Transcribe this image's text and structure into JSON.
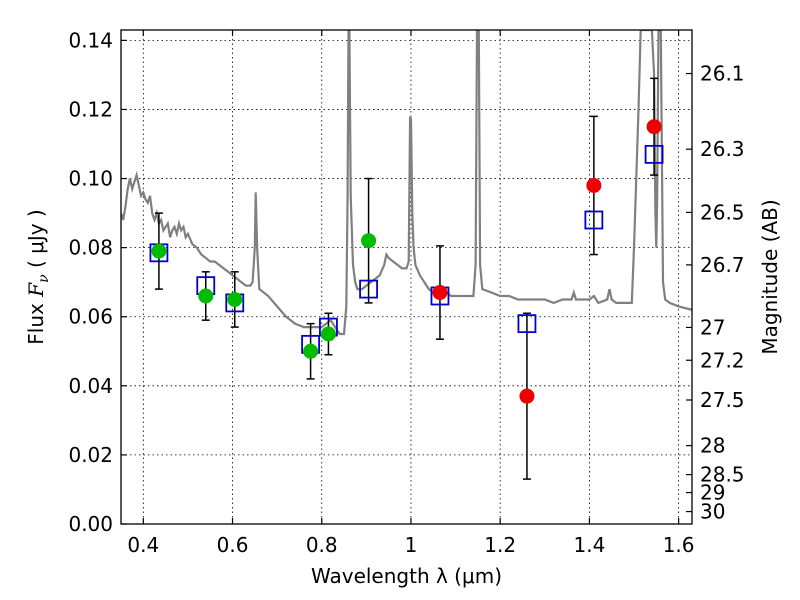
{
  "chart_data": {
    "type": "scatter",
    "title": "",
    "xlabel": "Wavelength  λ (μm)",
    "ylabel": "Flux  F_ν  ( μJy )",
    "ylabel_parts": {
      "lead": "Flux  ",
      "symbol": "F",
      "sub": "ν",
      "tail": "  ( μJy )"
    },
    "ylabel_right": "Magnitude (AB)",
    "xlim": [
      0.35,
      1.63
    ],
    "ylim": [
      0.0,
      0.143
    ],
    "grid": true,
    "x_ticks": [
      0.4,
      0.6,
      0.8,
      1.0,
      1.2,
      1.4,
      1.6
    ],
    "x_tick_labels": [
      "0.4",
      "0.6",
      "0.8",
      "1",
      "1.2",
      "1.4",
      "1.6"
    ],
    "y_ticks": [
      0.0,
      0.02,
      0.04,
      0.06,
      0.08,
      0.1,
      0.12,
      0.14
    ],
    "y_tick_labels": [
      "0.00",
      "0.02",
      "0.04",
      "0.06",
      "0.08",
      "0.10",
      "0.12",
      "0.14"
    ],
    "right_ticks": [
      {
        "label": "26.1",
        "flux": 0.1304
      },
      {
        "label": "26.3",
        "flux": 0.1085
      },
      {
        "label": "26.5",
        "flux": 0.0902
      },
      {
        "label": "26.7",
        "flux": 0.075
      },
      {
        "label": "27",
        "flux": 0.0569
      },
      {
        "label": "27.2",
        "flux": 0.0474
      },
      {
        "label": "27.5",
        "flux": 0.0359
      },
      {
        "label": "28",
        "flux": 0.0227
      },
      {
        "label": "28.5",
        "flux": 0.0143
      },
      {
        "label": "29",
        "flux": 0.0091
      },
      {
        "label": "30",
        "flux": 0.0036
      }
    ],
    "series": [
      {
        "name": "model spectrum",
        "kind": "line",
        "color": "#808080",
        "points": [
          [
            0.35,
            0.09
          ],
          [
            0.355,
            0.088
          ],
          [
            0.36,
            0.092
          ],
          [
            0.365,
            0.097
          ],
          [
            0.37,
            0.1
          ],
          [
            0.375,
            0.097
          ],
          [
            0.38,
            0.099
          ],
          [
            0.385,
            0.101
          ],
          [
            0.39,
            0.098
          ],
          [
            0.395,
            0.095
          ],
          [
            0.4,
            0.096
          ],
          [
            0.405,
            0.094
          ],
          [
            0.41,
            0.093
          ],
          [
            0.415,
            0.095
          ],
          [
            0.42,
            0.09
          ],
          [
            0.425,
            0.088
          ],
          [
            0.43,
            0.09
          ],
          [
            0.435,
            0.087
          ],
          [
            0.44,
            0.088
          ],
          [
            0.445,
            0.085
          ],
          [
            0.45,
            0.086
          ],
          [
            0.455,
            0.087
          ],
          [
            0.46,
            0.083
          ],
          [
            0.465,
            0.085
          ],
          [
            0.47,
            0.086
          ],
          [
            0.475,
            0.084
          ],
          [
            0.48,
            0.087
          ],
          [
            0.485,
            0.085
          ],
          [
            0.49,
            0.086
          ],
          [
            0.495,
            0.083
          ],
          [
            0.5,
            0.084
          ],
          [
            0.51,
            0.081
          ],
          [
            0.52,
            0.08
          ],
          [
            0.53,
            0.078
          ],
          [
            0.54,
            0.077
          ],
          [
            0.55,
            0.076
          ],
          [
            0.56,
            0.076
          ],
          [
            0.57,
            0.075
          ],
          [
            0.58,
            0.074
          ],
          [
            0.59,
            0.073
          ],
          [
            0.6,
            0.072
          ],
          [
            0.61,
            0.071
          ],
          [
            0.62,
            0.07
          ],
          [
            0.63,
            0.069
          ],
          [
            0.64,
            0.069
          ],
          [
            0.645,
            0.07
          ],
          [
            0.65,
            0.08
          ],
          [
            0.652,
            0.096
          ],
          [
            0.655,
            0.08
          ],
          [
            0.66,
            0.068
          ],
          [
            0.68,
            0.066
          ],
          [
            0.7,
            0.063
          ],
          [
            0.72,
            0.06
          ],
          [
            0.74,
            0.058
          ],
          [
            0.76,
            0.057
          ],
          [
            0.78,
            0.057
          ],
          [
            0.8,
            0.057
          ],
          [
            0.81,
            0.058
          ],
          [
            0.82,
            0.059
          ],
          [
            0.83,
            0.057
          ],
          [
            0.84,
            0.055
          ],
          [
            0.85,
            0.055
          ],
          [
            0.855,
            0.063
          ],
          [
            0.858,
            0.095
          ],
          [
            0.86,
            0.143
          ],
          [
            0.862,
            0.143
          ],
          [
            0.865,
            0.095
          ],
          [
            0.87,
            0.075
          ],
          [
            0.875,
            0.07
          ],
          [
            0.88,
            0.068
          ],
          [
            0.89,
            0.068
          ],
          [
            0.9,
            0.069
          ],
          [
            0.91,
            0.07
          ],
          [
            0.92,
            0.071
          ],
          [
            0.93,
            0.072
          ],
          [
            0.94,
            0.075
          ],
          [
            0.945,
            0.078
          ],
          [
            0.95,
            0.077
          ],
          [
            0.96,
            0.076
          ],
          [
            0.97,
            0.075
          ],
          [
            0.98,
            0.074
          ],
          [
            0.99,
            0.074
          ],
          [
            0.995,
            0.076
          ],
          [
            0.998,
            0.118
          ],
          [
            1.0,
            0.117
          ],
          [
            1.003,
            0.09
          ],
          [
            1.006,
            0.08
          ],
          [
            1.01,
            0.075
          ],
          [
            1.02,
            0.072
          ],
          [
            1.03,
            0.07
          ],
          [
            1.04,
            0.068
          ],
          [
            1.05,
            0.067
          ],
          [
            1.06,
            0.066
          ],
          [
            1.07,
            0.066
          ],
          [
            1.08,
            0.067
          ],
          [
            1.09,
            0.066
          ],
          [
            1.1,
            0.066
          ],
          [
            1.12,
            0.066
          ],
          [
            1.14,
            0.066
          ],
          [
            1.145,
            0.075
          ],
          [
            1.148,
            0.143
          ],
          [
            1.152,
            0.143
          ],
          [
            1.155,
            0.075
          ],
          [
            1.16,
            0.068
          ],
          [
            1.18,
            0.067
          ],
          [
            1.2,
            0.066
          ],
          [
            1.22,
            0.066
          ],
          [
            1.24,
            0.065
          ],
          [
            1.26,
            0.065
          ],
          [
            1.28,
            0.065
          ],
          [
            1.3,
            0.065
          ],
          [
            1.32,
            0.064
          ],
          [
            1.34,
            0.065
          ],
          [
            1.36,
            0.065
          ],
          [
            1.365,
            0.067
          ],
          [
            1.37,
            0.065
          ],
          [
            1.38,
            0.065
          ],
          [
            1.4,
            0.065
          ],
          [
            1.41,
            0.066
          ],
          [
            1.42,
            0.064
          ],
          [
            1.44,
            0.065
          ],
          [
            1.445,
            0.068
          ],
          [
            1.45,
            0.065
          ],
          [
            1.46,
            0.064
          ],
          [
            1.48,
            0.064
          ],
          [
            1.495,
            0.064
          ],
          [
            1.5,
            0.08
          ],
          [
            1.51,
            0.12
          ],
          [
            1.515,
            0.143
          ],
          [
            1.53,
            0.143
          ],
          [
            1.54,
            0.143
          ],
          [
            1.545,
            0.13
          ],
          [
            1.548,
            0.09
          ],
          [
            1.55,
            0.08
          ],
          [
            1.552,
            0.095
          ],
          [
            1.555,
            0.143
          ],
          [
            1.56,
            0.143
          ],
          [
            1.565,
            0.07
          ],
          [
            1.57,
            0.065
          ],
          [
            1.58,
            0.064
          ],
          [
            1.6,
            0.063
          ],
          [
            1.63,
            0.062
          ]
        ]
      },
      {
        "name": "model photometry",
        "kind": "markers",
        "marker": "square-open",
        "color": "#0000cc",
        "x": [
          0.435,
          0.54,
          0.605,
          0.775,
          0.815,
          0.905,
          1.065,
          1.26,
          1.41,
          1.545
        ],
        "y": [
          0.0785,
          0.069,
          0.064,
          0.052,
          0.057,
          0.068,
          0.066,
          0.058,
          0.088,
          0.107
        ]
      },
      {
        "name": "observed (detection)",
        "kind": "markers",
        "marker": "circle",
        "color": "#00bb00",
        "x": [
          0.435,
          0.54,
          0.605,
          0.775,
          0.815,
          0.905
        ],
        "y": [
          0.079,
          0.066,
          0.065,
          0.05,
          0.055,
          0.082
        ],
        "yerr": [
          0.011,
          0.007,
          0.008,
          0.008,
          0.006,
          0.018
        ]
      },
      {
        "name": "observed (red points)",
        "kind": "markers",
        "marker": "circle",
        "color": "#ee0000",
        "x": [
          1.065,
          1.26,
          1.41,
          1.545
        ],
        "y": [
          0.067,
          0.037,
          0.098,
          0.115
        ],
        "yerr": [
          0.0135,
          0.024,
          0.02,
          0.014
        ]
      }
    ]
  }
}
